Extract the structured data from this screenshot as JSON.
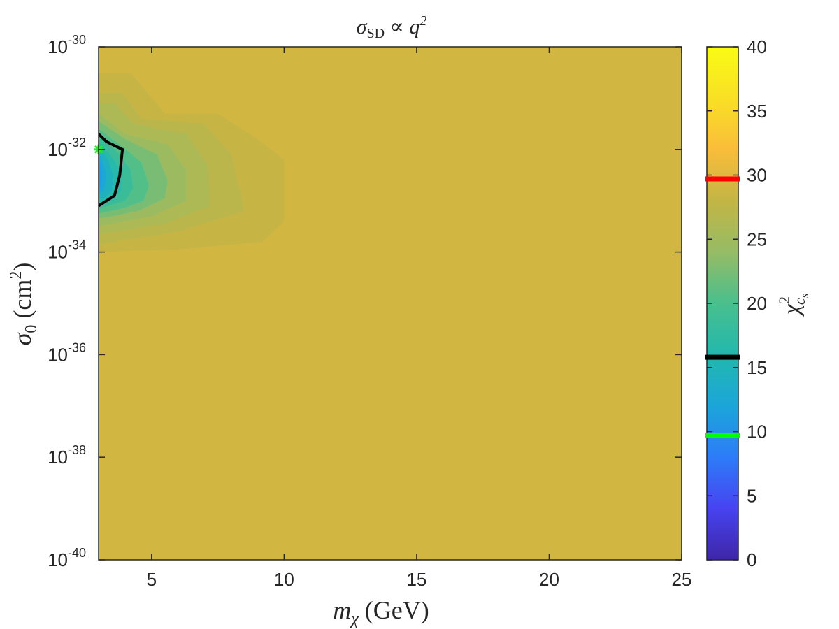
{
  "chart_data": {
    "type": "heatmap",
    "title": "σ",
    "title_sub": "SD",
    "title_rest": " ∝ q",
    "title_sup": "2",
    "xlabel": {
      "var": "m",
      "sub": "χ",
      "unit": " (GeV)"
    },
    "ylabel": {
      "var": "σ",
      "sub": "0",
      "unit": " (cm",
      "unit_sup": "2",
      "unit_close": ")"
    },
    "x_scale": "linear",
    "y_scale": "log",
    "xlim": [
      3,
      25
    ],
    "ylim": [
      1e-40,
      1e-30
    ],
    "x_ticks": [
      5,
      10,
      15,
      20,
      25
    ],
    "y_ticks": [
      {
        "value": 1e-30,
        "base": "10",
        "exp": "-30"
      },
      {
        "value": 1e-32,
        "base": "10",
        "exp": "-32"
      },
      {
        "value": 1e-34,
        "base": "10",
        "exp": "-34"
      },
      {
        "value": 1e-36,
        "base": "10",
        "exp": "-36"
      },
      {
        "value": 1e-38,
        "base": "10",
        "exp": "-38"
      },
      {
        "value": 1e-40,
        "base": "10",
        "exp": "-40"
      }
    ],
    "background_value": 29,
    "contour_levels": [
      {
        "value": 28.2,
        "points": [
          [
            3,
            -30.5
          ],
          [
            4.2,
            -30.5
          ],
          [
            5.5,
            -31.3
          ],
          [
            7.5,
            -31.3
          ],
          [
            9,
            -31.8
          ],
          [
            10,
            -32.2
          ],
          [
            10,
            -33.4
          ],
          [
            9.2,
            -33.8
          ],
          [
            6,
            -33.95
          ],
          [
            3,
            -34
          ]
        ]
      },
      {
        "value": 27.2,
        "points": [
          [
            3,
            -30.9
          ],
          [
            3.9,
            -30.9
          ],
          [
            4.6,
            -31.4
          ],
          [
            7,
            -31.5
          ],
          [
            8,
            -32.1
          ],
          [
            8.5,
            -33.2
          ],
          [
            6,
            -33.6
          ],
          [
            3,
            -33.85
          ]
        ]
      },
      {
        "value": 26,
        "points": [
          [
            3,
            -31.1
          ],
          [
            3.6,
            -31.1
          ],
          [
            4.3,
            -31.5
          ],
          [
            6.3,
            -31.7
          ],
          [
            7.1,
            -32.3
          ],
          [
            7.2,
            -33.1
          ],
          [
            5.5,
            -33.45
          ],
          [
            3,
            -33.65
          ]
        ]
      },
      {
        "value": 24.5,
        "points": [
          [
            3,
            -31.3
          ],
          [
            4,
            -31.7
          ],
          [
            5.6,
            -31.9
          ],
          [
            6.3,
            -32.4
          ],
          [
            6.3,
            -33.0
          ],
          [
            5,
            -33.3
          ],
          [
            3,
            -33.5
          ]
        ]
      },
      {
        "value": 22.5,
        "points": [
          [
            3,
            -31.45
          ],
          [
            4,
            -31.8
          ],
          [
            5.2,
            -32.1
          ],
          [
            5.6,
            -32.6
          ],
          [
            5.5,
            -32.95
          ],
          [
            4.5,
            -33.2
          ],
          [
            3,
            -33.35
          ]
        ]
      },
      {
        "value": 20.5,
        "points": [
          [
            3,
            -31.6
          ],
          [
            3.9,
            -31.95
          ],
          [
            4.6,
            -32.25
          ],
          [
            4.9,
            -32.7
          ],
          [
            4.7,
            -33.0
          ],
          [
            3.9,
            -33.15
          ],
          [
            3,
            -33.25
          ]
        ]
      },
      {
        "value": 18.5,
        "points": [
          [
            3,
            -31.75
          ],
          [
            3.7,
            -32.05
          ],
          [
            4.2,
            -32.4
          ],
          [
            4.3,
            -32.75
          ],
          [
            4.0,
            -33.0
          ],
          [
            3,
            -33.15
          ]
        ]
      },
      {
        "value": 16.5,
        "points": [
          [
            3,
            -31.85
          ],
          [
            3.5,
            -32.15
          ],
          [
            3.85,
            -32.45
          ],
          [
            3.85,
            -32.8
          ],
          [
            3.5,
            -33.0
          ],
          [
            3,
            -33.05
          ]
        ]
      },
      {
        "value": 14.5,
        "points": [
          [
            3,
            -31.95
          ],
          [
            3.35,
            -32.2
          ],
          [
            3.55,
            -32.5
          ],
          [
            3.5,
            -32.8
          ],
          [
            3.2,
            -32.95
          ],
          [
            3,
            -32.95
          ]
        ]
      },
      {
        "value": 12.5,
        "points": [
          [
            3,
            -32.05
          ],
          [
            3.2,
            -32.3
          ],
          [
            3.3,
            -32.55
          ],
          [
            3.2,
            -32.8
          ],
          [
            3,
            -32.85
          ]
        ]
      },
      {
        "value": 11,
        "points": [
          [
            3,
            -32.15
          ],
          [
            3.1,
            -32.4
          ],
          [
            3.12,
            -32.6
          ],
          [
            3.05,
            -32.75
          ],
          [
            3,
            -32.75
          ]
        ]
      }
    ],
    "confidence_contour": [
      [
        3,
        -31.7
      ],
      [
        3.3,
        -31.85
      ],
      [
        3.9,
        -32.0
      ],
      [
        3.8,
        -32.5
      ],
      [
        3.6,
        -32.9
      ],
      [
        3.3,
        -33.0
      ],
      [
        3,
        -33.1
      ]
    ],
    "best_fit_point": {
      "x": 3,
      "y": -32
    },
    "colorbar": {
      "label_var": "χ",
      "label_sup": "2",
      "label_sub": "c",
      "label_subsub": "s",
      "min": 0,
      "max": 40,
      "ticks": [
        0,
        5,
        10,
        15,
        20,
        25,
        30,
        35,
        40
      ],
      "markers": [
        {
          "value": 29.7,
          "color": "#ff0000"
        },
        {
          "value": 15.8,
          "color": "#000000"
        },
        {
          "value": 9.7,
          "color": "#00ff00"
        }
      ]
    },
    "colormap": [
      "#3e26a8",
      "#4743f1",
      "#2d7cf8",
      "#1ba6d9",
      "#22b8ae",
      "#49bf8d",
      "#96bc65",
      "#c3b545",
      "#f9bd3a",
      "#f9e025",
      "#f9fb15"
    ]
  }
}
